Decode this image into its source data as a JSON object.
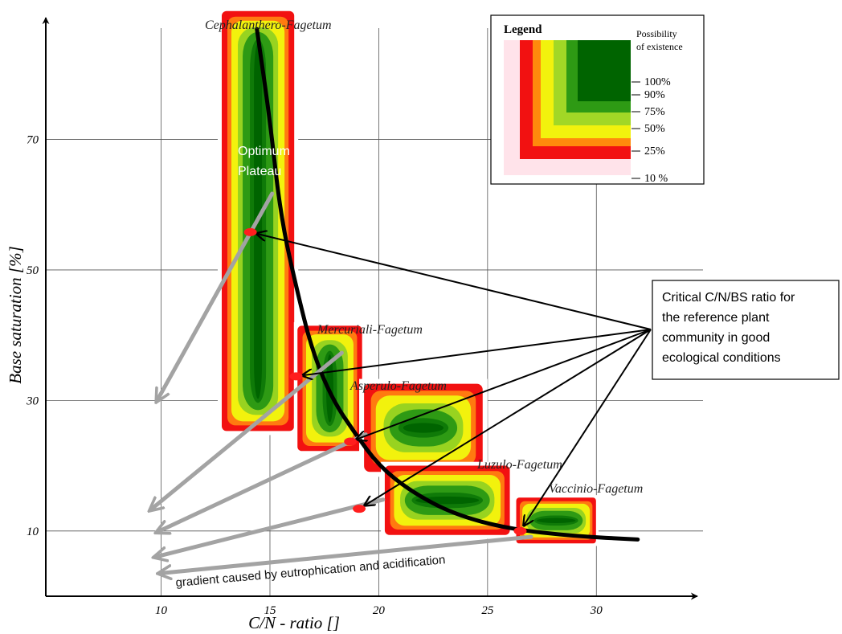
{
  "chart_data": {
    "type": "heatmap",
    "title": "",
    "xlabel": "C/N - ratio []",
    "ylabel": "Base saturation [%]",
    "xlim": [
      4.7,
      34.9
    ],
    "ylim": [
      0,
      89.4
    ],
    "x_ticks": [
      10,
      15,
      20,
      25,
      30
    ],
    "y_ticks": [
      10,
      30,
      50,
      70
    ],
    "grid": true,
    "communities": [
      {
        "name": "Cephalanthero-Fagetum",
        "x_range": [
          12.6,
          16.3
        ],
        "y_range": [
          24.7,
          90.3
        ],
        "cn": 14.1,
        "bs": 55.8
      },
      {
        "name": "Mercuriali-Fagetum",
        "x_range": [
          16.1,
          19.4
        ],
        "y_range": [
          21.7,
          42.0
        ],
        "cn": 16.2,
        "bs": 33.7
      },
      {
        "name": "Asperulo-Fagetum",
        "x_range": [
          19.1,
          25.0
        ],
        "y_range": [
          18.3,
          33.3
        ],
        "cn": 18.7,
        "bs": 23.7
      },
      {
        "name": "Luzulo-Fagetum",
        "x_range": [
          20.1,
          26.2
        ],
        "y_range": [
          8.8,
          20.6
        ],
        "cn": 19.1,
        "bs": 13.4
      },
      {
        "name": "Vaccinio-Fagetum",
        "x_range": [
          26.2,
          30.1
        ],
        "y_range": [
          7.7,
          15.5
        ],
        "cn": 26.5,
        "bs": 10.0
      }
    ],
    "critical_curve": [
      [
        14.4,
        86.9
      ],
      [
        15.0,
        73.0
      ],
      [
        15.5,
        58.0
      ],
      [
        16.3,
        46.0
      ],
      [
        17.0,
        37.0
      ],
      [
        17.9,
        30.0
      ],
      [
        18.9,
        25.0
      ],
      [
        20.0,
        20.0
      ],
      [
        21.5,
        16.0
      ],
      [
        23.5,
        12.5
      ],
      [
        26.0,
        10.3
      ],
      [
        29.0,
        9.2
      ],
      [
        31.9,
        8.7
      ]
    ],
    "gradient_arrows": [
      {
        "from": [
          15.1,
          61.7
        ],
        "to": [
          9.8,
          29.9
        ]
      },
      {
        "from": [
          18.3,
          37.3
        ],
        "to": [
          9.5,
          13.2
        ]
      },
      {
        "from": [
          19.4,
          24.8
        ],
        "to": [
          9.8,
          9.8
        ]
      },
      {
        "from": [
          20.2,
          14.8
        ],
        "to": [
          9.7,
          6.0
        ]
      },
      {
        "from": [
          27.0,
          9.1
        ],
        "to": [
          9.9,
          3.5
        ]
      }
    ],
    "legend_levels": [
      "100%",
      "90%",
      "75%",
      "50%",
      "25%",
      "10 %"
    ],
    "annotations": {
      "optimum_l1": "Optimum",
      "optimum_l2": "Plateau",
      "critical_l1": "Critical C/N/BS ratio for",
      "critical_l2": "the reference plant",
      "critical_l3": "community in good",
      "critical_l4": "ecological conditions",
      "gradient": "gradient caused by eutrophication and acidification"
    },
    "legend": {
      "title": "Legend",
      "subtitle_l1": "Possibility",
      "subtitle_l2": "of existence",
      "placement": "top-right"
    },
    "colors": {
      "dark_green": "#006400",
      "green": "#2e9a14",
      "yellow": "#f2f20d",
      "red": "#f21111",
      "point": "#ff1e1e",
      "curve": "#000000",
      "gradient_arrow": "#a3a3a3"
    }
  }
}
